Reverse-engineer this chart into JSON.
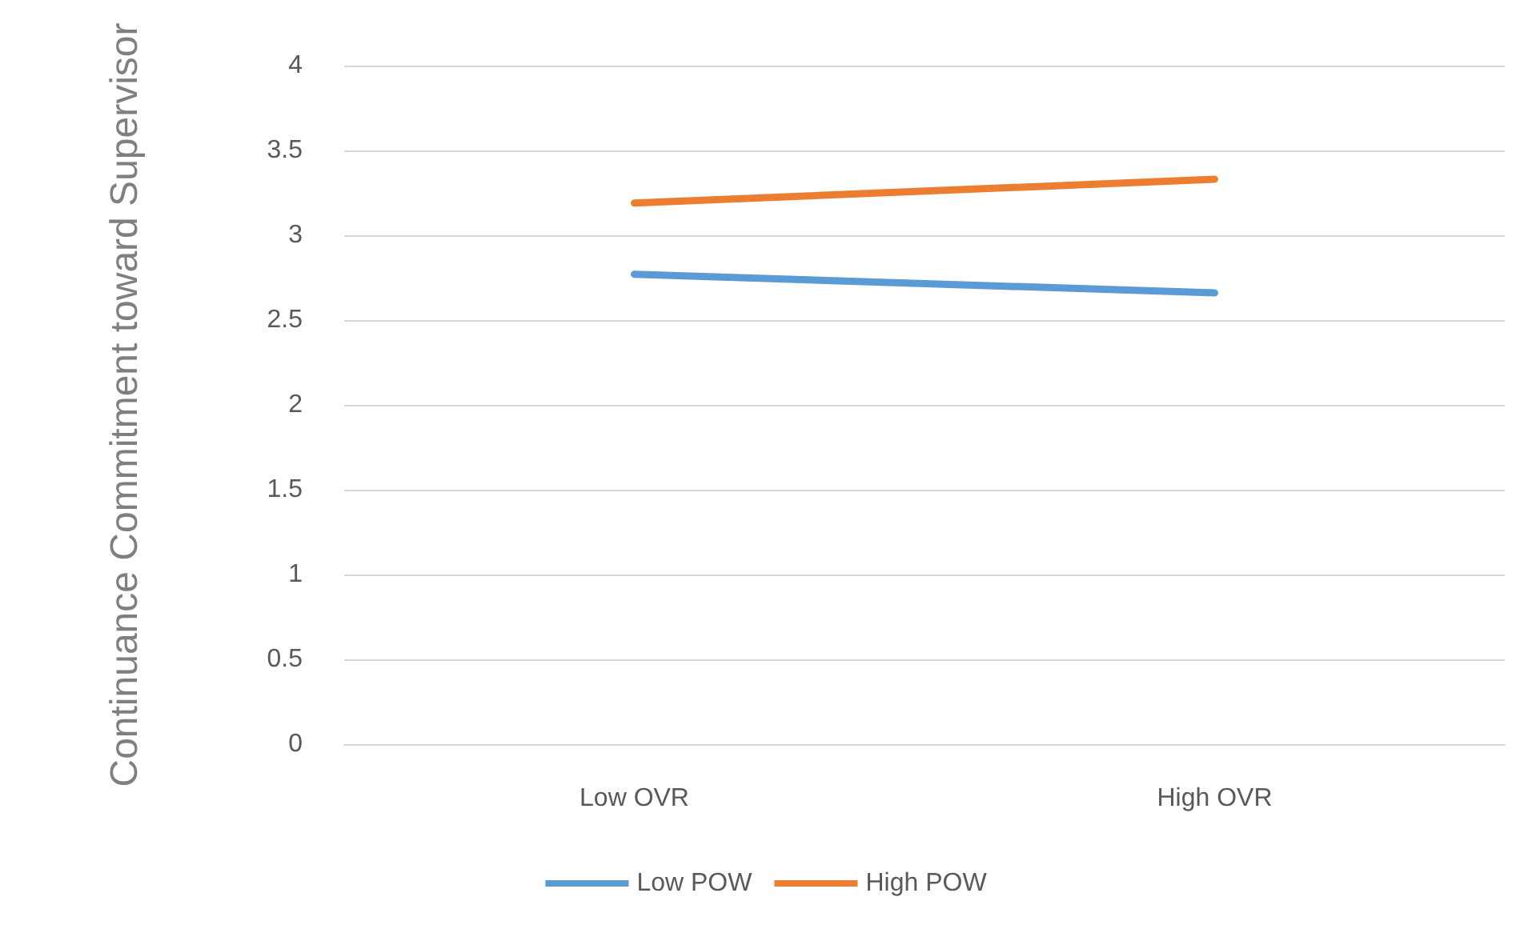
{
  "chart_data": {
    "type": "line",
    "ylabel": "Continuance Commitment toward Supervisor",
    "categories": [
      "Low OVR",
      "High OVR"
    ],
    "series": [
      {
        "name": "Low POW",
        "color": "#5b9bd5",
        "values": [
          2.77,
          2.66
        ]
      },
      {
        "name": "High POW",
        "color": "#ed7d31",
        "values": [
          3.19,
          3.33
        ]
      }
    ],
    "ylim": [
      0,
      4
    ],
    "yticks": [
      0,
      0.5,
      1,
      1.5,
      2,
      2.5,
      3,
      3.5,
      4
    ],
    "grid": "y",
    "legend": "bottom",
    "marker": "none",
    "line_style": "solid"
  }
}
